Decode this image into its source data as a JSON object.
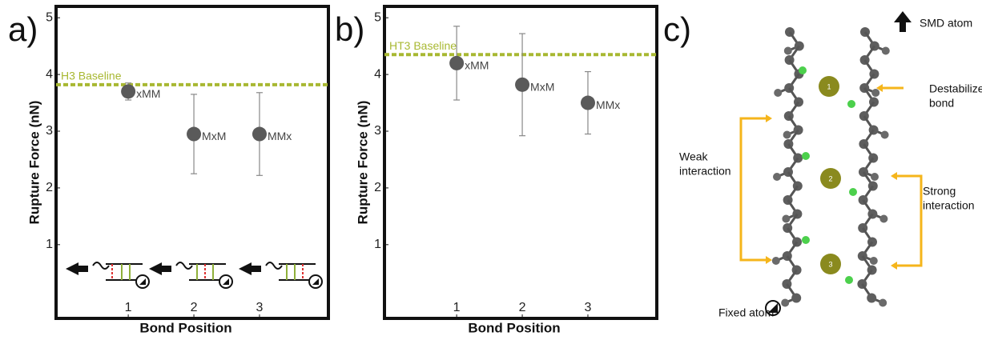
{
  "chart_data": [
    {
      "type": "scatter",
      "panel_label": "a)",
      "xlabel": "Bond Position",
      "ylabel": "Rupture Force (nN)",
      "x": [
        1,
        2,
        3
      ],
      "xlim": [
        -0.1,
        4.05
      ],
      "xticks": [
        1,
        2,
        3
      ],
      "ylim": [
        -0.3,
        5.2
      ],
      "yticks": [
        1,
        2,
        3,
        4,
        5
      ],
      "series": [
        {
          "color": "#5a5a5a",
          "values": [
            3.7,
            2.95,
            2.95
          ],
          "errors": [
            0.15,
            0.7,
            0.73
          ],
          "point_labels": [
            "xMM",
            "MxM",
            "MMx"
          ]
        }
      ],
      "baseline": {
        "label": "H3 Baseline",
        "value": 3.82,
        "color": "#a8b832"
      }
    },
    {
      "type": "scatter",
      "panel_label": "b)",
      "xlabel": "Bond Position",
      "ylabel": "Rupture Force (nN)",
      "x": [
        1,
        2,
        3
      ],
      "xlim": [
        -0.1,
        4.05
      ],
      "xticks": [
        1,
        2,
        3
      ],
      "ylim": [
        -0.3,
        5.2
      ],
      "yticks": [
        1,
        2,
        3,
        4,
        5
      ],
      "series": [
        {
          "color": "#5a5a5a",
          "values": [
            4.2,
            3.82,
            3.5
          ],
          "errors": [
            0.65,
            0.9,
            0.55
          ],
          "point_labels": [
            "xMM",
            "MxM",
            "MMx"
          ]
        }
      ],
      "baseline": {
        "label": "HT3 Baseline",
        "value": 4.35,
        "color": "#a8b832"
      }
    }
  ],
  "diagram": {
    "panel_label": "c)",
    "smd_label": "SMD atom",
    "fixed_label": "Fixed atom",
    "destabilized_label": [
      "Destabilized",
      "bond"
    ],
    "weak_label": [
      "Weak",
      "interaction"
    ],
    "strong_label": [
      "Strong",
      "interaction"
    ],
    "site_labels": [
      "1",
      "2",
      "3"
    ]
  }
}
